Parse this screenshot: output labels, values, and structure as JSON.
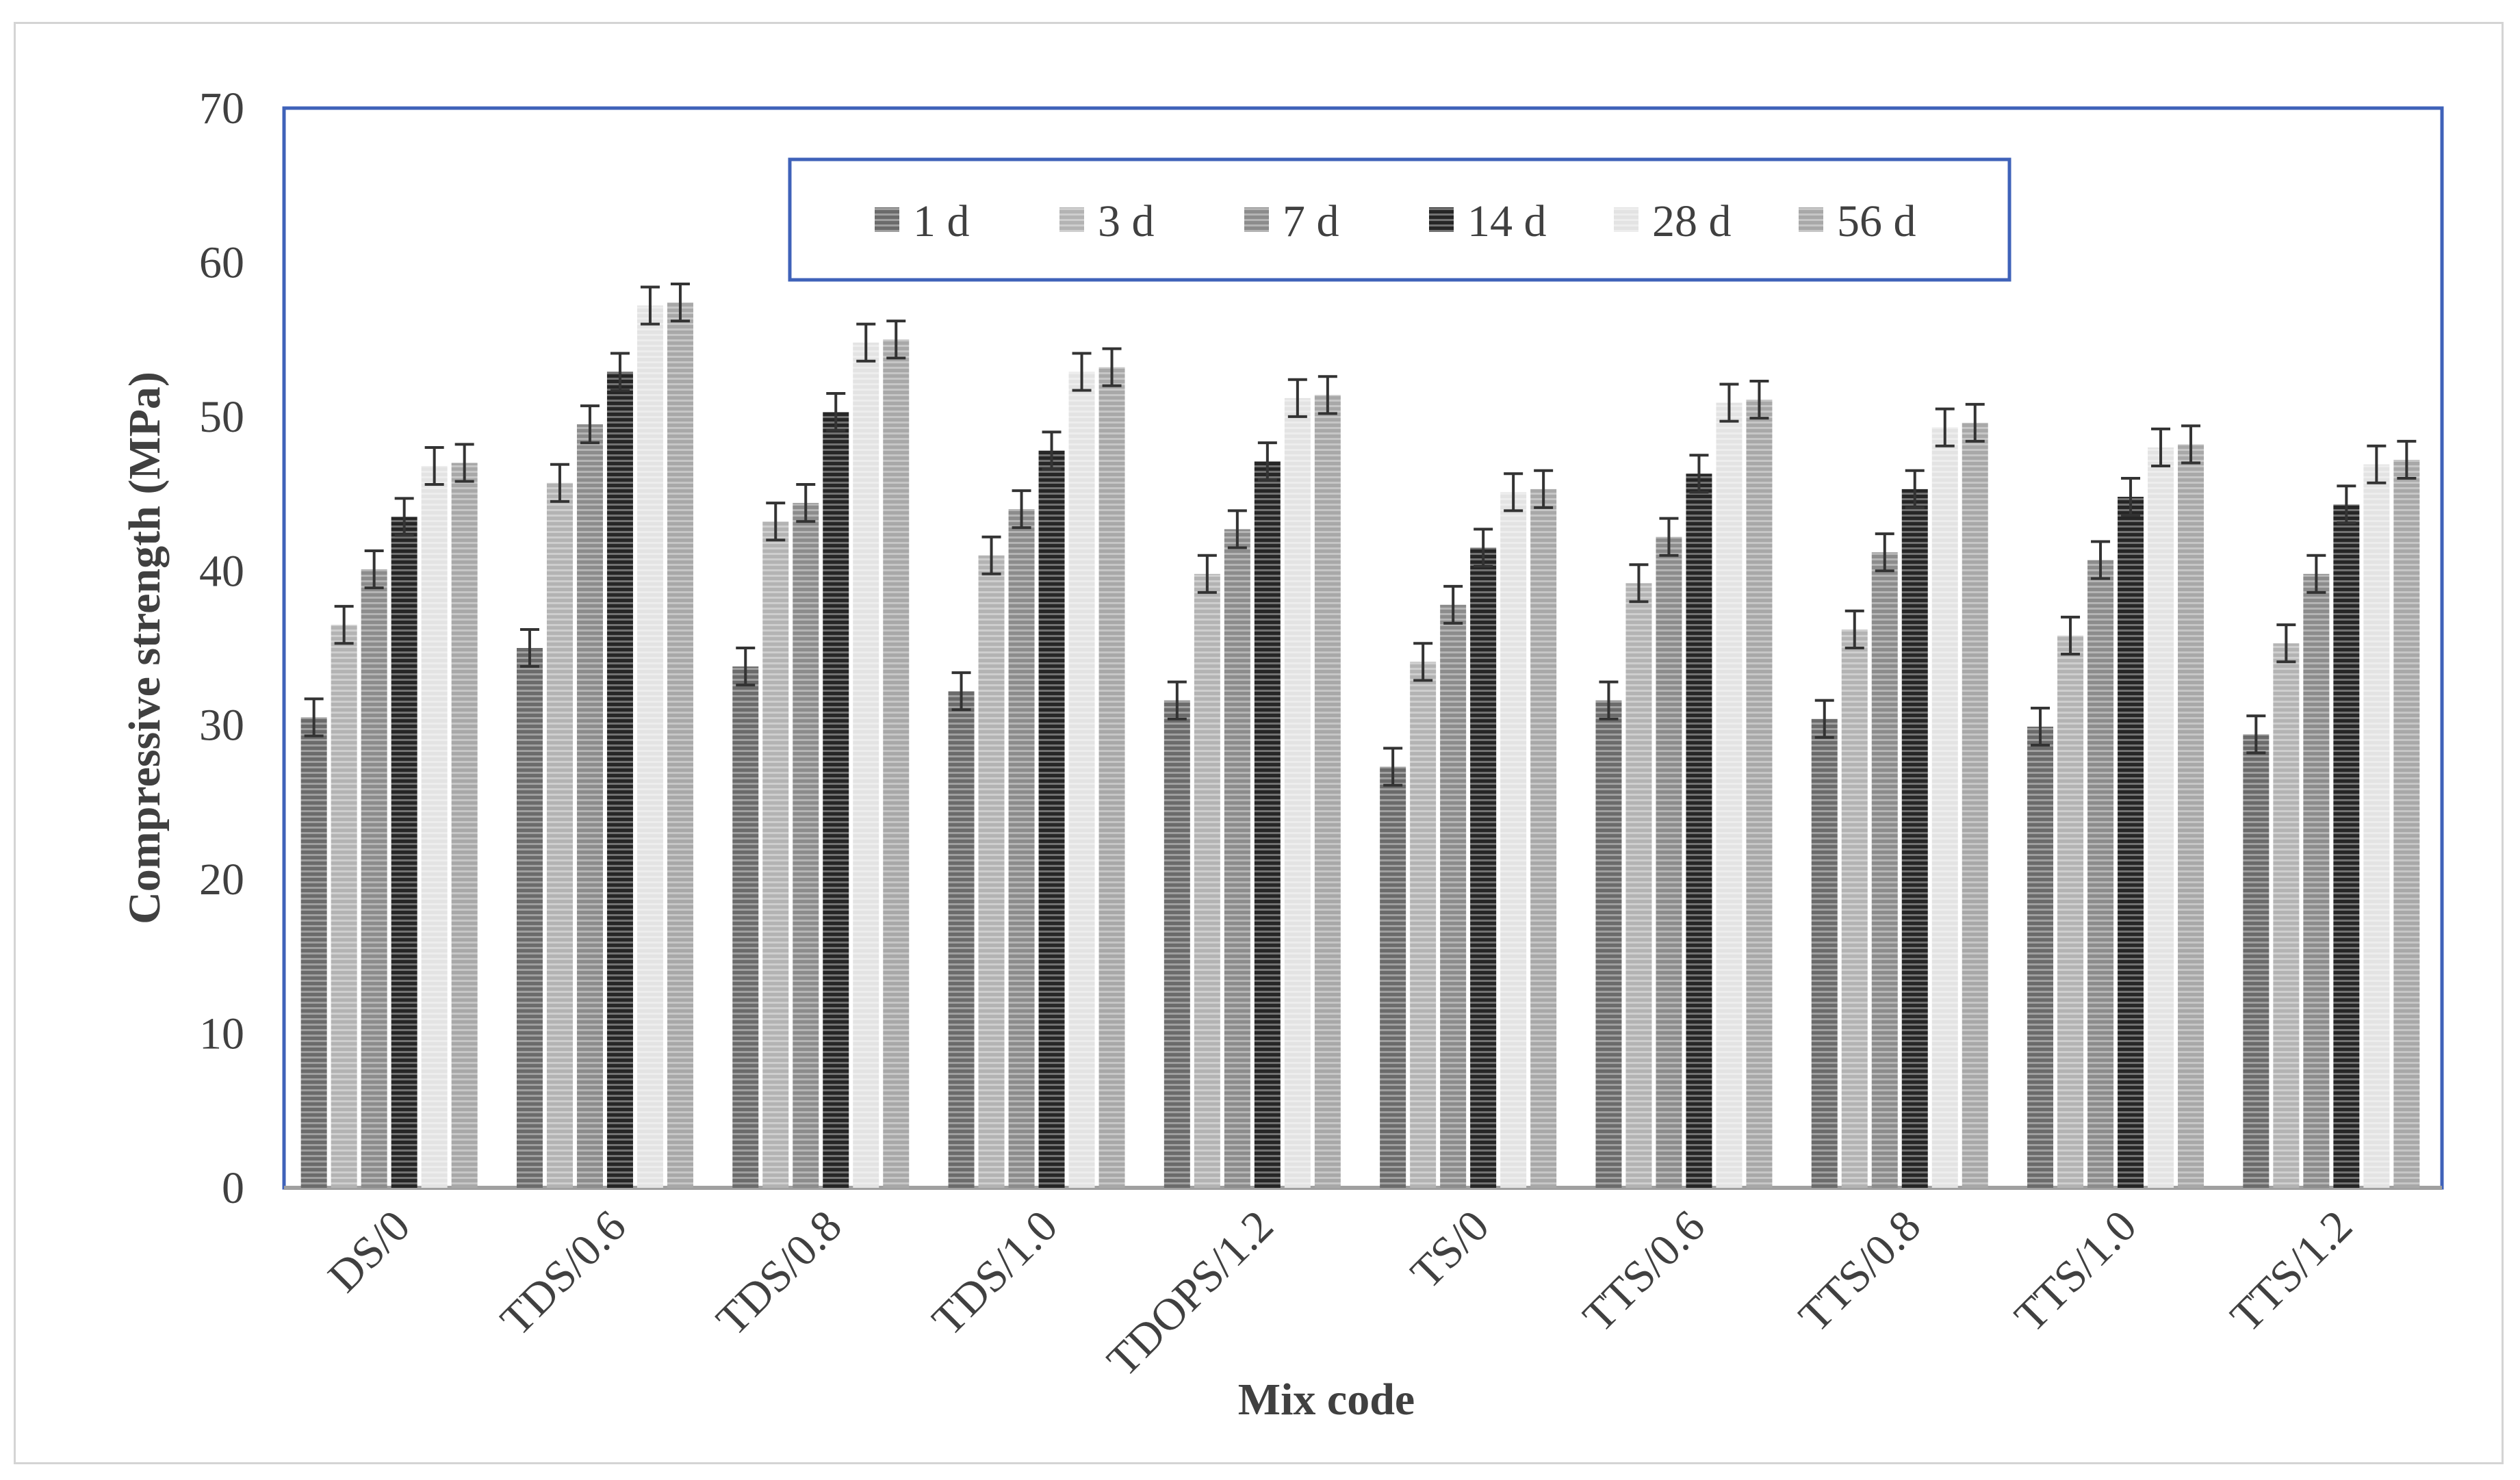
{
  "chart_data": {
    "type": "bar",
    "xlabel": "Mix code",
    "ylabel": "Compressive strength (MPa)",
    "ylim": [
      0,
      70
    ],
    "yticks": [
      0,
      10,
      20,
      30,
      40,
      50,
      60,
      70
    ],
    "grid": false,
    "legend_position": "top-center",
    "error_bars": true,
    "error_bar_half_range": 1.2,
    "categories": [
      "DS/0",
      "TDS/0.6",
      "TDS/0.8",
      "TDS/1.0",
      "TDOPS/1.2",
      "TS/0",
      "TTS/0.6",
      "TTS/0.8",
      "TTS/1.0",
      "TTS/1.2"
    ],
    "series": [
      {
        "name": "1 d",
        "color": "#6b6b6b",
        "values": [
          30.5,
          35.0,
          33.8,
          32.2,
          31.6,
          27.3,
          31.6,
          30.4,
          29.9,
          29.4
        ]
      },
      {
        "name": "3 d",
        "color": "#b3b3b3",
        "values": [
          36.5,
          45.7,
          43.2,
          41.0,
          39.8,
          34.1,
          39.2,
          36.2,
          35.8,
          35.3
        ]
      },
      {
        "name": "7 d",
        "color": "#8c8c8c",
        "values": [
          40.1,
          49.5,
          44.4,
          44.0,
          42.7,
          37.8,
          42.2,
          41.2,
          40.7,
          39.8
        ]
      },
      {
        "name": "14 d",
        "color": "#262626",
        "values": [
          43.5,
          52.9,
          50.3,
          47.8,
          47.1,
          41.5,
          46.3,
          45.3,
          44.8,
          44.3
        ]
      },
      {
        "name": "28 d",
        "color": "#e3e3e3",
        "values": [
          46.8,
          57.2,
          54.8,
          52.9,
          51.2,
          45.1,
          50.9,
          49.3,
          48.0,
          46.9
        ]
      },
      {
        "name": "56 d",
        "color": "#a8a8a8",
        "values": [
          47.0,
          57.4,
          55.0,
          53.2,
          51.4,
          45.3,
          51.1,
          49.6,
          48.2,
          47.2
        ]
      }
    ]
  }
}
